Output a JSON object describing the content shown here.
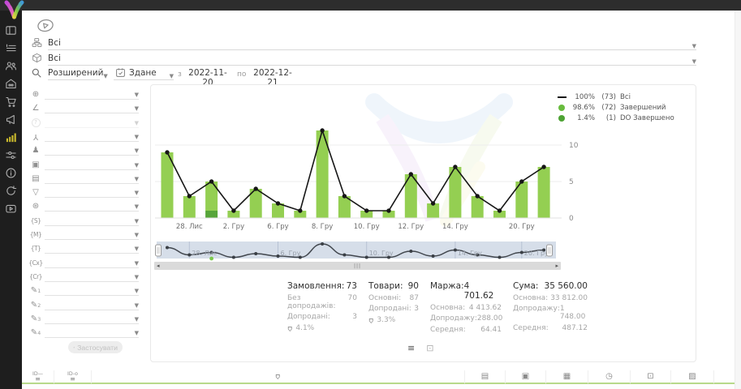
{
  "filters": {
    "category": {
      "value": "Всі"
    },
    "product": {
      "value": "Всі"
    },
    "search_mode": {
      "value": "Розширений"
    },
    "date_field": {
      "value": "Здане"
    },
    "from_label": "з",
    "date_from": "2022-11-20",
    "to_label": "по",
    "date_to": "2022-12-21",
    "rows": [
      {
        "icon": "world-icon"
      },
      {
        "icon": "level-icon"
      },
      {
        "icon": "help-icon",
        "disabled": true
      },
      {
        "icon": "org-tree-icon"
      },
      {
        "icon": "person-icon"
      },
      {
        "icon": "package-icon"
      },
      {
        "icon": "money-icon"
      },
      {
        "icon": "funnel-icon"
      },
      {
        "icon": "globe-icon"
      },
      {
        "icon": "brace-s-icon",
        "label": "{S}"
      },
      {
        "icon": "brace-m-icon",
        "label": "{M}"
      },
      {
        "icon": "brace-t-icon",
        "label": "{T}"
      },
      {
        "icon": "brace-cx-icon",
        "label": "{Cx}"
      },
      {
        "icon": "brace-cr-icon",
        "label": "{Cr}"
      },
      {
        "icon": "pencil-icon",
        "sub": "1"
      },
      {
        "icon": "pencil-icon",
        "sub": "2"
      },
      {
        "icon": "pencil-icon",
        "sub": "3"
      },
      {
        "icon": "pencil-icon",
        "sub": "4"
      }
    ],
    "apply_button": {
      "label": "Застосувати",
      "disabled": true
    }
  },
  "sidebar": {
    "items": [
      {
        "icon": "dashboard-icon"
      },
      {
        "icon": "orders-list-icon"
      },
      {
        "icon": "customers-icon"
      },
      {
        "icon": "warehouse-icon"
      },
      {
        "icon": "cart-icon"
      },
      {
        "icon": "marketing-icon"
      },
      {
        "icon": "analytics-icon",
        "active": true
      },
      {
        "icon": "settings-sliders-icon"
      },
      {
        "icon": "info-icon"
      },
      {
        "icon": "sync-icon"
      },
      {
        "icon": "video-icon"
      }
    ]
  },
  "chart_data": {
    "type": "bar",
    "title": "",
    "values": [
      9,
      3,
      5,
      1,
      4,
      2,
      1,
      12,
      3,
      1,
      1,
      6,
      2,
      7,
      3,
      1,
      5,
      7
    ],
    "line_values": [
      9,
      3,
      5,
      1,
      4,
      2,
      1,
      12,
      3,
      1,
      1,
      6,
      2,
      7,
      3,
      1,
      5,
      7
    ],
    "stacked_segment": {
      "index": 2,
      "value": 1,
      "label": "DO Завершено"
    },
    "x_tick_labels": {
      "1": "28. Лис",
      "3": "2. Гру",
      "5": "6. Гру",
      "7": "8. Гру",
      "9": "10. Гру",
      "11": "12. Гру",
      "13": "14. Гру",
      "16": "20. Гру"
    },
    "y_ticks": [
      "0",
      "5",
      "10"
    ],
    "ylim": [
      0,
      13
    ],
    "grid": true,
    "legend_position": "top-right",
    "legend": [
      {
        "swatch": "line",
        "percent": "100%",
        "count": "(73)",
        "label": "Всі"
      },
      {
        "swatch": "dot",
        "percent": "98.6%",
        "count": "(72)",
        "label": "Завершений"
      },
      {
        "swatch": "dot-dark",
        "percent": "1.4%",
        "count": "(1)",
        "label": "DO Завершено"
      }
    ],
    "colors": {
      "bar": "#94cf52",
      "bar_dark": "#57a53a",
      "line": "#161616",
      "legend_dot": "#68bc3e",
      "legend_dot_dark": "#4da334"
    }
  },
  "navigator": {
    "labels": [
      {
        "index": 1,
        "text": "28. Лис"
      },
      {
        "index": 5,
        "text": "6. Гру"
      },
      {
        "index": 9,
        "text": "10. Гру"
      },
      {
        "index": 13,
        "text": "14. Гру"
      },
      {
        "index": 16,
        "text": "20. Гру"
      }
    ]
  },
  "stats": {
    "columns": [
      {
        "title": "Замовлення:",
        "value": "73",
        "rows": [
          [
            "Без допродажів:",
            "70"
          ],
          [
            "Допродані:",
            "3"
          ]
        ],
        "basket_percent": "4.1%"
      },
      {
        "title": "Товари:",
        "value": "90",
        "rows": [
          [
            "Основні:",
            "87"
          ],
          [
            "Допродані:",
            "3"
          ]
        ],
        "basket_percent": "3.3%"
      },
      {
        "title": "Маржа:",
        "value": "4 701.62",
        "rows": [
          [
            "Основна:",
            "4 413.62"
          ],
          [
            "Допродажу:",
            "288.00"
          ],
          [
            "Середня:",
            "64.41"
          ]
        ]
      },
      {
        "title": "Сума:",
        "value": "35 560.00",
        "rows": [
          [
            "Основна:",
            "33 812.00"
          ],
          [
            "Допродажу:",
            "1 748.00"
          ],
          [
            "Середня:",
            "487.12"
          ]
        ]
      }
    ]
  },
  "view_toggles": [
    {
      "icon": "list-view-icon",
      "active": true
    },
    {
      "icon": "cube-view-icon",
      "active": false
    }
  ],
  "table_header": {
    "cells": [
      {
        "icon": "id-list-icon"
      },
      {
        "icon": "id-link-icon"
      },
      {
        "icon": "basket-icon"
      },
      {
        "icon": "money-icon"
      },
      {
        "icon": "package-icon"
      },
      {
        "icon": "calendar-icon"
      },
      {
        "icon": "clock-icon"
      },
      {
        "icon": "calendar-dot-icon"
      },
      {
        "icon": "calendar-edit-icon"
      },
      {
        "icon": ""
      }
    ]
  }
}
